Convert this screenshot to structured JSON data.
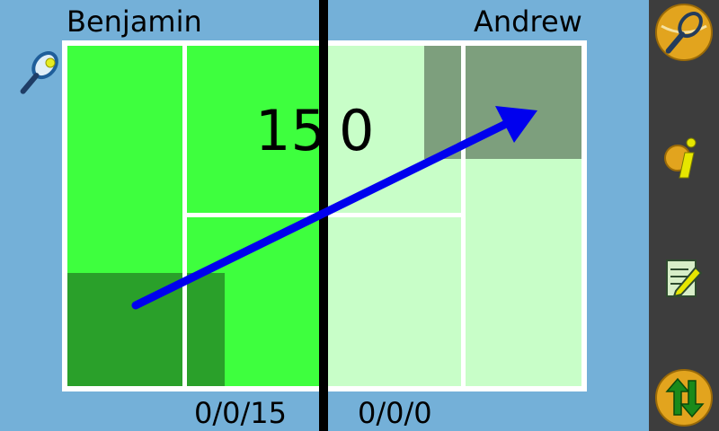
{
  "players": {
    "left_name": "Benjamin",
    "right_name": "Andrew"
  },
  "score": {
    "left_points": "15",
    "right_points": "0",
    "left_games": "0/0/15",
    "right_games": "0/0/0"
  },
  "colors": {
    "background": "#74b0d8",
    "left_court": "#3eff3e",
    "left_highlight": "#2aa02a",
    "right_court": "#c8fec8",
    "right_highlight": "#7d9f7d",
    "shot_arrow": "#0000ee",
    "sidebar": "#3d3d3d"
  },
  "sidebar": {
    "buttons": [
      "racket-icon",
      "info-icon",
      "notepad-icon",
      "swap-sides-icon"
    ]
  }
}
